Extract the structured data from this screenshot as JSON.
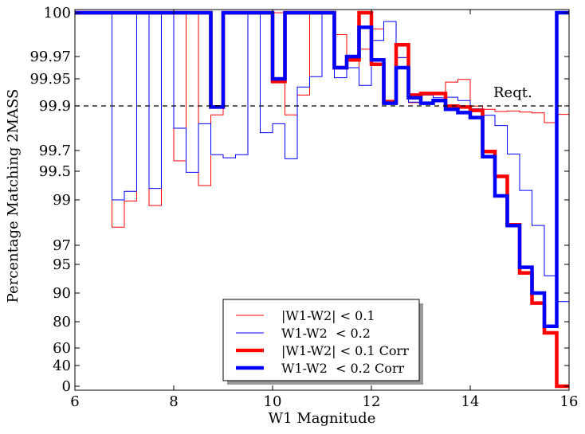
{
  "chart_data": {
    "type": "line",
    "step": true,
    "xlabel": "W1 Magnitude",
    "ylabel": "Percentage Matching 2MASS",
    "xlim": [
      6,
      16
    ],
    "ylim": [
      0,
      100
    ],
    "y_scale": "nonlinear",
    "x_ticks": [
      6,
      8,
      10,
      12,
      14,
      16
    ],
    "x_tick_labels": [
      "6",
      "8",
      "10",
      "12",
      "14",
      "16"
    ],
    "y_ticks": [
      0,
      40,
      60,
      80,
      90,
      95,
      97,
      99,
      99.5,
      99.7,
      99.9,
      99.95,
      99.97,
      100
    ],
    "y_tick_labels": [
      "0",
      "40",
      "60",
      "80",
      "90",
      "95",
      "97",
      "99",
      "99.5",
      "99.7",
      "99.9",
      "99.95",
      "99.97",
      "100"
    ],
    "bin_edges": [
      6.0,
      6.25,
      6.5,
      6.75,
      7.0,
      7.25,
      7.5,
      7.75,
      8.0,
      8.25,
      8.5,
      8.75,
      9.0,
      9.25,
      9.5,
      9.75,
      10.0,
      10.25,
      10.5,
      10.75,
      11.0,
      11.25,
      11.5,
      11.75,
      12.0,
      12.25,
      12.5,
      12.75,
      13.0,
      13.25,
      13.5,
      13.75,
      14.0,
      14.25,
      14.5,
      14.75,
      15.0,
      15.25,
      15.5,
      15.75,
      16.0
    ],
    "reference_line": {
      "y": 99.9,
      "style": "dashed",
      "label": "Reqt."
    },
    "series": [
      {
        "name": "|W1-W2| < 0.1",
        "color": "#ff0000",
        "width": 1,
        "values": [
          100,
          100,
          100,
          97.8,
          98.95,
          100,
          98.75,
          100,
          99.6,
          100,
          99.25,
          99.86,
          100,
          100,
          100,
          100,
          100,
          99.86,
          99.92,
          100,
          100,
          99.985,
          99.96,
          99.975,
          99.989,
          99.994,
          99.969,
          99.906,
          99.921,
          99.923,
          99.944,
          99.949,
          99.899,
          99.885,
          99.875,
          99.877,
          99.872,
          99.869,
          99.825,
          99.862,
          99.885
        ]
      },
      {
        "name": "W1-W2  < 0.2",
        "color": "#0000ff",
        "width": 1,
        "values": [
          100,
          100,
          100,
          99.0,
          99.15,
          100,
          99.2,
          100,
          99.8,
          99.48,
          99.82,
          99.66,
          99.63,
          99.66,
          100,
          99.78,
          99.82,
          99.62,
          99.935,
          99.952,
          100,
          99.951,
          99.96,
          99.938,
          99.981,
          99.994,
          99.969,
          99.907,
          99.92,
          99.915,
          99.916,
          99.91,
          99.887,
          99.858,
          99.812,
          99.666,
          99.165,
          97.875,
          93.0,
          87.0,
          78.5
        ]
      },
      {
        "name": "|W1-W2| < 0.1 Corr",
        "color": "#ff0000",
        "width": 4.5,
        "values": [
          100,
          100,
          100,
          100,
          100,
          100,
          100,
          100,
          100,
          100,
          100,
          99.895,
          100,
          100,
          100,
          100,
          99.945,
          100,
          100,
          100,
          100,
          99.96,
          99.967,
          100,
          99.963,
          99.908,
          99.978,
          99.92,
          99.923,
          99.923,
          99.899,
          99.895,
          99.88,
          99.69,
          99.41,
          97.9,
          93.5,
          86.5,
          71.5,
          0,
          0
        ]
      },
      {
        "name": "W1-W2  < 0.2 Corr",
        "color": "#0000ff",
        "width": 4.5,
        "values": [
          100,
          100,
          100,
          100,
          100,
          100,
          100,
          100,
          100,
          100,
          100,
          99.895,
          100,
          100,
          100,
          100,
          99.95,
          100,
          100,
          100,
          100,
          99.96,
          99.97,
          99.99,
          99.967,
          99.905,
          99.96,
          99.915,
          99.905,
          99.91,
          99.885,
          99.87,
          99.848,
          99.64,
          99.07,
          97.87,
          94.5,
          90.0,
          76.5,
          100,
          100
        ]
      }
    ],
    "legend": {
      "placement": "lower-center",
      "entries": [
        "|W1-W2| < 0.1",
        "W1-W2  < 0.2",
        "|W1-W2| < 0.1 Corr",
        "W1-W2  < 0.2 Corr"
      ]
    },
    "grid": false
  }
}
